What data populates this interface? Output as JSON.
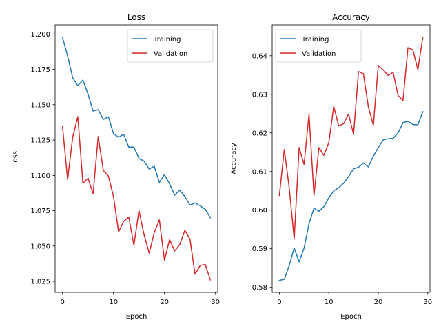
{
  "chart_data": [
    {
      "type": "line",
      "title": "Loss",
      "xlabel": "Epoch",
      "ylabel": "Loss",
      "xlim": [
        -1.45,
        30.45
      ],
      "ylim": [
        1.0172,
        1.2065
      ],
      "xticks": [
        0,
        10,
        20,
        30
      ],
      "yticks": [
        1.025,
        1.05,
        1.075,
        1.1,
        1.125,
        1.15,
        1.175,
        1.2
      ],
      "ytick_labels": [
        "1.025",
        "1.050",
        "1.075",
        "1.100",
        "1.125",
        "1.150",
        "1.175",
        "1.200"
      ],
      "legend_position": "top-right",
      "grid": false,
      "x": [
        0,
        1,
        2,
        3,
        4,
        5,
        6,
        7,
        8,
        9,
        10,
        11,
        12,
        13,
        14,
        15,
        16,
        17,
        18,
        19,
        20,
        21,
        22,
        23,
        24,
        25,
        26,
        27,
        28,
        29
      ],
      "series": [
        {
          "name": "Training",
          "color": "#1f77b4",
          "values": [
            1.1975,
            1.1845,
            1.169,
            1.1635,
            1.1675,
            1.1575,
            1.1455,
            1.1465,
            1.1395,
            1.1415,
            1.1295,
            1.127,
            1.129,
            1.12,
            1.12,
            1.112,
            1.11,
            1.1045,
            1.1065,
            1.095,
            1.1005,
            1.094,
            1.086,
            1.0895,
            1.085,
            1.079,
            1.0805,
            1.0785,
            1.076,
            1.07
          ]
        },
        {
          "name": "Validation",
          "color": "#d62728",
          "values": [
            1.1345,
            1.097,
            1.127,
            1.1415,
            1.0945,
            1.098,
            1.087,
            1.1275,
            1.1035,
            1.0995,
            1.085,
            1.06,
            1.0675,
            1.0705,
            1.0505,
            1.075,
            1.058,
            1.045,
            1.0595,
            1.0685,
            1.04,
            1.0545,
            1.0465,
            1.051,
            1.0612,
            1.055,
            1.03,
            1.0362,
            1.037,
            1.026
          ]
        }
      ]
    },
    {
      "type": "line",
      "title": "Accuracy",
      "xlabel": "Epoch",
      "ylabel": "Accuracy",
      "xlim": [
        -1.45,
        30.45
      ],
      "ylim": [
        0.5787,
        0.648
      ],
      "xticks": [
        0,
        10,
        20,
        30
      ],
      "yticks": [
        0.58,
        0.59,
        0.6,
        0.61,
        0.62,
        0.63,
        0.64
      ],
      "ytick_labels": [
        "0.58",
        "0.59",
        "0.60",
        "0.61",
        "0.62",
        "0.63",
        "0.64"
      ],
      "legend_position": "top-left",
      "grid": false,
      "x": [
        0,
        1,
        2,
        3,
        4,
        5,
        6,
        7,
        8,
        9,
        10,
        11,
        12,
        13,
        14,
        15,
        16,
        17,
        18,
        19,
        20,
        21,
        22,
        23,
        24,
        25,
        26,
        27,
        28,
        29
      ],
      "series": [
        {
          "name": "Training",
          "color": "#1f77b4",
          "values": [
            0.5818,
            0.5821,
            0.5857,
            0.5902,
            0.5866,
            0.5902,
            0.5965,
            0.6005,
            0.5997,
            0.6009,
            0.6032,
            0.605,
            0.6058,
            0.607,
            0.6087,
            0.6107,
            0.6111,
            0.6122,
            0.6112,
            0.614,
            0.6162,
            0.6182,
            0.6185,
            0.6186,
            0.62,
            0.6227,
            0.623,
            0.6222,
            0.6221,
            0.6255
          ]
        },
        {
          "name": "Validation",
          "color": "#d62728",
          "values": [
            0.6038,
            0.6157,
            0.6057,
            0.5925,
            0.6162,
            0.6118,
            0.6249,
            0.6038,
            0.6162,
            0.6142,
            0.6175,
            0.6269,
            0.6218,
            0.6224,
            0.6249,
            0.6196,
            0.6359,
            0.6353,
            0.6267,
            0.622,
            0.6375,
            0.6363,
            0.6349,
            0.6357,
            0.6297,
            0.6284,
            0.6421,
            0.6415,
            0.6364,
            0.6448
          ]
        }
      ]
    }
  ]
}
